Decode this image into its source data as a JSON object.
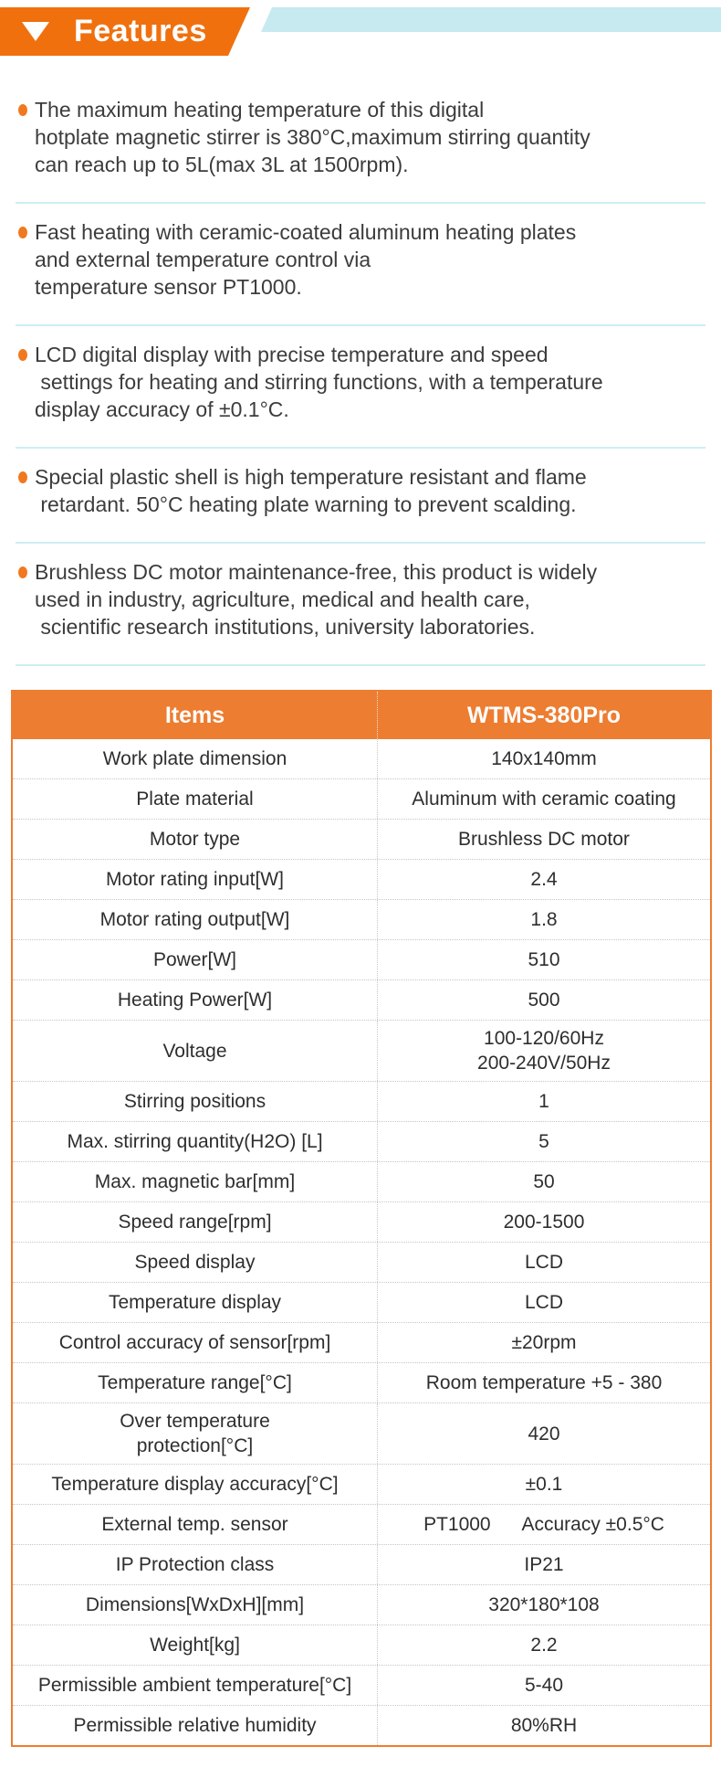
{
  "colors": {
    "banner-orange": "#F0700E",
    "table-orange": "#ED7D31",
    "strip-blue": "#C7E9F0",
    "divider-blue": "#CDEEF3",
    "bullet-orange": "#F0781E"
  },
  "header": {
    "title": "Features",
    "marker_icon": "triangle-down-icon"
  },
  "features": {
    "items": [
      {
        "lines": [
          "The maximum heating temperature of this digital",
          "hotplate magnetic stirrer is 380°C,maximum stirring quantity",
          "can reach up to 5L(max 3L at 1500rpm)."
        ]
      },
      {
        "lines": [
          "Fast heating with ceramic-coated aluminum heating plates",
          "and external temperature control via",
          "temperature sensor PT1000."
        ]
      },
      {
        "lines": [
          "LCD digital display with precise temperature and speed",
          " settings for heating and stirring functions, with a temperature",
          "display accuracy of ±0.1°C."
        ]
      },
      {
        "lines": [
          "Special plastic shell is high temperature resistant and flame",
          " retardant. 50°C heating plate warning to prevent scalding."
        ]
      },
      {
        "lines": [
          "Brushless DC motor maintenance-free, this product is widely",
          "used in industry, agriculture, medical and health care,",
          " scientific research institutions, university laboratories."
        ]
      }
    ]
  },
  "table": {
    "columns": [
      "Items",
      "WTMS-380Pro"
    ],
    "rows": [
      {
        "item": "Work plate dimension",
        "value": "140x140mm"
      },
      {
        "item": "Plate material",
        "value": "Aluminum with ceramic coating"
      },
      {
        "item": "Motor type",
        "value": "Brushless DC motor"
      },
      {
        "item": "Motor rating input[W]",
        "value": "2.4"
      },
      {
        "item": "Motor rating output[W]",
        "value": "1.8"
      },
      {
        "item": "Power[W]",
        "value": "510"
      },
      {
        "item": "Heating Power[W]",
        "value": "500"
      },
      {
        "item": "Voltage",
        "value": [
          "100-120/60Hz",
          "200-240V/50Hz"
        ]
      },
      {
        "item": "Stirring positions",
        "value": "1"
      },
      {
        "item": "Max. stirring quantity(H2O) [L]",
        "value": "5"
      },
      {
        "item": "Max. magnetic bar[mm]",
        "value": "50"
      },
      {
        "item": "Speed range[rpm]",
        "value": "200-1500"
      },
      {
        "item": "Speed display",
        "value": "LCD"
      },
      {
        "item": "Temperature display",
        "value": "LCD"
      },
      {
        "item": "Control accuracy of sensor[rpm]",
        "value": "±20rpm"
      },
      {
        "item": "Temperature range[°C]",
        "value": "Room temperature +5 - 380"
      },
      {
        "item": [
          "Over temperature",
          "protection[°C]"
        ],
        "value": "420"
      },
      {
        "item": "Temperature display accuracy[°C]",
        "value": "±0.1"
      },
      {
        "item": "External temp. sensor",
        "value": "PT1000      Accuracy ±0.5°C"
      },
      {
        "item": "IP Protection class",
        "value": "IP21"
      },
      {
        "item": "Dimensions[WxDxH][mm]",
        "value": "320*180*108"
      },
      {
        "item": "Weight[kg]",
        "value": "2.2"
      },
      {
        "item": "Permissible ambient temperature[°C]",
        "value": "5-40"
      },
      {
        "item": "Permissible relative humidity",
        "value": "80%RH"
      }
    ]
  }
}
